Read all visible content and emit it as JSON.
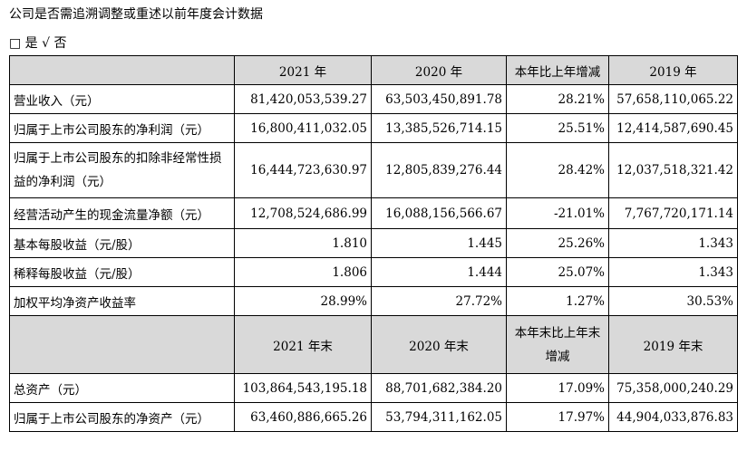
{
  "heading": "公司是否需追溯调整或重述以前年度会计数据",
  "choice": "□ 是 √ 否",
  "header1": [
    "",
    "2021 年",
    "2020 年",
    "本年比上年增减",
    "2019 年"
  ],
  "rows1": [
    [
      "营业收入（元）",
      "81,420,053,539.27",
      "63,503,450,891.78",
      "28.21%",
      "57,658,110,065.22"
    ],
    [
      "归属于上市公司股东的净利润（元）",
      "16,800,411,032.05",
      "13,385,526,714.15",
      "25.51%",
      "12,414,587,690.45"
    ],
    [
      "归属于上市公司股东的扣除非经常性损益的净利润（元）",
      "16,444,723,630.97",
      "12,805,839,276.44",
      "28.42%",
      "12,037,518,321.42"
    ],
    [
      "经营活动产生的现金流量净额（元）",
      "12,708,524,686.99",
      "16,088,156,566.67",
      "-21.01%",
      "7,767,720,171.14"
    ],
    [
      "基本每股收益（元/股）",
      "1.810",
      "1.445",
      "25.26%",
      "1.343"
    ],
    [
      "稀释每股收益（元/股）",
      "1.806",
      "1.444",
      "25.07%",
      "1.343"
    ],
    [
      "加权平均净资产收益率",
      "28.99%",
      "27.72%",
      "1.27%",
      "30.53%"
    ]
  ],
  "header2": [
    "",
    "2021 年末",
    "2020 年末",
    "本年末比上年末增减",
    "2019 年末"
  ],
  "rows2": [
    [
      "总资产（元）",
      "103,864,543,195.18",
      "88,701,682,384.20",
      "17.09%",
      "75,358,000,240.29"
    ],
    [
      "归属于上市公司股东的净资产（元）",
      "63,460,886,665.26",
      "53,794,311,162.05",
      "17.97%",
      "44,904,033,876.83"
    ]
  ]
}
